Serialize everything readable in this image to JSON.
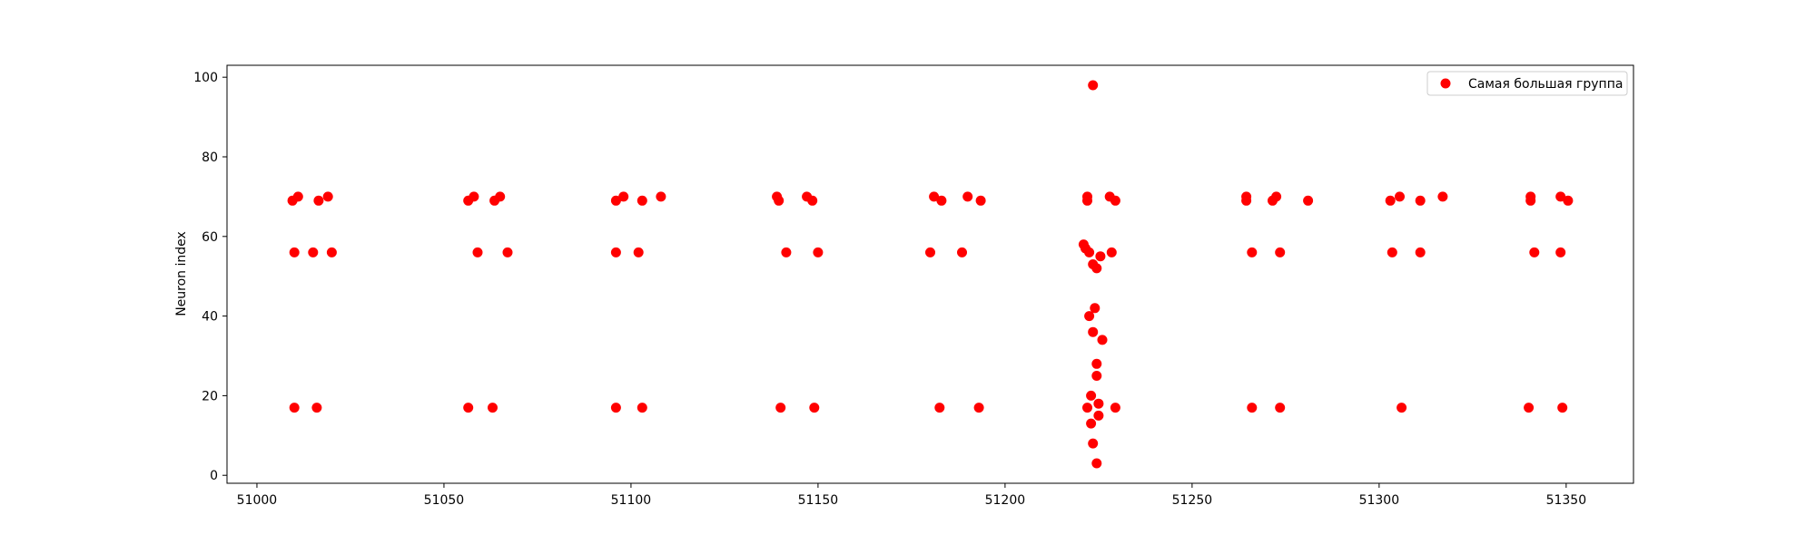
{
  "chart_data": {
    "type": "scatter",
    "title": "",
    "xlabel": "",
    "ylabel": "Neuron index",
    "xlim": [
      50992,
      51368
    ],
    "ylim": [
      -2,
      103
    ],
    "xticks": [
      51000,
      51050,
      51100,
      51150,
      51200,
      51250,
      51300,
      51350
    ],
    "yticks": [
      0,
      20,
      40,
      60,
      80,
      100
    ],
    "grid": false,
    "legend_position": "top-right",
    "series": [
      {
        "name": "Самая большая группа",
        "color": "#ff0000",
        "points": [
          [
            51009.5,
            69
          ],
          [
            51011,
            70
          ],
          [
            51016.5,
            69
          ],
          [
            51019,
            70
          ],
          [
            51010,
            56
          ],
          [
            51015,
            56
          ],
          [
            51020,
            56
          ],
          [
            51010,
            17
          ],
          [
            51016,
            17
          ],
          [
            51056.5,
            69
          ],
          [
            51058,
            70
          ],
          [
            51063.5,
            69
          ],
          [
            51065,
            70
          ],
          [
            51059,
            56
          ],
          [
            51067,
            56
          ],
          [
            51056.5,
            17
          ],
          [
            51063,
            17
          ],
          [
            51096,
            69
          ],
          [
            51098,
            70
          ],
          [
            51103,
            69
          ],
          [
            51108,
            70
          ],
          [
            51096,
            56
          ],
          [
            51102,
            56
          ],
          [
            51096,
            17
          ],
          [
            51103,
            17
          ],
          [
            51139,
            70
          ],
          [
            51139.5,
            69
          ],
          [
            51147,
            70
          ],
          [
            51148.5,
            69
          ],
          [
            51141.5,
            56
          ],
          [
            51150,
            56
          ],
          [
            51140,
            17
          ],
          [
            51149,
            17
          ],
          [
            51181,
            70
          ],
          [
            51183,
            69
          ],
          [
            51190,
            70
          ],
          [
            51193.5,
            69
          ],
          [
            51180,
            56
          ],
          [
            51188.5,
            56
          ],
          [
            51182.5,
            17
          ],
          [
            51193,
            17
          ],
          [
            51222,
            70
          ],
          [
            51222,
            69
          ],
          [
            51228,
            70
          ],
          [
            51229.5,
            69
          ],
          [
            51223.5,
            98
          ],
          [
            51221,
            58
          ],
          [
            51221.5,
            57
          ],
          [
            51222.5,
            56
          ],
          [
            51223.5,
            53
          ],
          [
            51224.5,
            52
          ],
          [
            51225.5,
            55
          ],
          [
            51228.5,
            56
          ],
          [
            51222.5,
            40
          ],
          [
            51224,
            42
          ],
          [
            51223.5,
            36
          ],
          [
            51226,
            34
          ],
          [
            51224.5,
            28
          ],
          [
            51224.5,
            25
          ],
          [
            51223,
            20
          ],
          [
            51222,
            17
          ],
          [
            51225,
            18
          ],
          [
            51229.5,
            17
          ],
          [
            51223,
            13
          ],
          [
            51225,
            15
          ],
          [
            51223.5,
            8
          ],
          [
            51224.5,
            3
          ],
          [
            51264.5,
            70
          ],
          [
            51264.5,
            69
          ],
          [
            51271.5,
            69
          ],
          [
            51272.5,
            70
          ],
          [
            51281,
            69
          ],
          [
            51266,
            56
          ],
          [
            51273.5,
            56
          ],
          [
            51266,
            17
          ],
          [
            51273.5,
            17
          ],
          [
            51303,
            69
          ],
          [
            51305.5,
            70
          ],
          [
            51311,
            69
          ],
          [
            51317,
            70
          ],
          [
            51303.5,
            56
          ],
          [
            51311,
            56
          ],
          [
            51306,
            17
          ],
          [
            51340.5,
            70
          ],
          [
            51340.5,
            69
          ],
          [
            51348.5,
            70
          ],
          [
            51350.5,
            69
          ],
          [
            51341.5,
            56
          ],
          [
            51348.5,
            56
          ],
          [
            51340,
            17
          ],
          [
            51349,
            17
          ]
        ]
      }
    ]
  }
}
